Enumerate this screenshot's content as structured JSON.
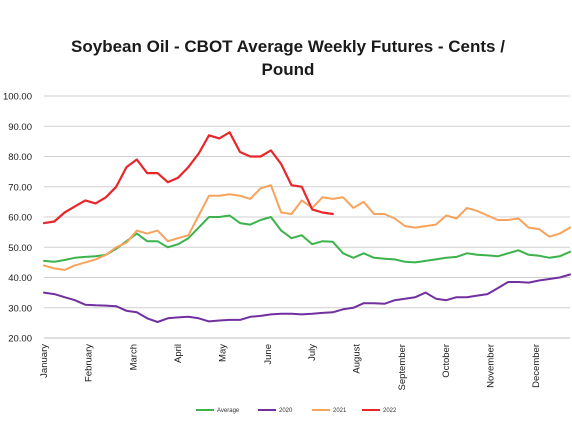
{
  "chart_data": {
    "type": "line",
    "title_lines": [
      "Soybean Oil - CBOT Average Weekly Futures - Cents /",
      "Pound"
    ],
    "xlabel": "",
    "ylabel": "",
    "ylim": [
      20,
      100
    ],
    "yticks": [
      "100.00",
      "90.00",
      "80.00",
      "70.00",
      "60.00",
      "50.00",
      "40.00",
      "30.00",
      "20.00"
    ],
    "xlim": [
      1,
      52
    ],
    "x_tick_labels": [
      {
        "label": "January",
        "week": 1
      },
      {
        "label": "February",
        "week": 5.3
      },
      {
        "label": "March",
        "week": 9.7
      },
      {
        "label": "April",
        "week": 14
      },
      {
        "label": "May",
        "week": 18.3
      },
      {
        "label": "June",
        "week": 22.7
      },
      {
        "label": "July",
        "week": 27
      },
      {
        "label": "August",
        "week": 31.3
      },
      {
        "label": "September",
        "week": 35.7
      },
      {
        "label": "October",
        "week": 40
      },
      {
        "label": "November",
        "week": 44.3
      },
      {
        "label": "December",
        "week": 48.7
      }
    ],
    "grid": true,
    "legend_position": "bottom",
    "series": [
      {
        "name": "Average",
        "color": "#3cb34a",
        "values": [
          45.5,
          45.2,
          45.8,
          46.5,
          46.8,
          47.0,
          47.5,
          49.5,
          52.0,
          54.5,
          52.0,
          52.0,
          50.0,
          51.0,
          53.0,
          56.5,
          60.0,
          60.0,
          60.5,
          58.0,
          57.5,
          59.0,
          60.0,
          55.5,
          53.0,
          54.0,
          51.0,
          52.0,
          51.8,
          48.0,
          46.5,
          48.0,
          46.5,
          46.2,
          46.0,
          45.2,
          45.0,
          45.5,
          46.0,
          46.5,
          46.8,
          48.0,
          47.5,
          47.3,
          47.0,
          48.0,
          49.0,
          47.5,
          47.2,
          46.5,
          47.0,
          48.5
        ]
      },
      {
        "name": "2020",
        "color": "#7030a0",
        "values": [
          35.0,
          34.5,
          33.5,
          32.5,
          31.0,
          30.8,
          30.7,
          30.5,
          29.0,
          28.5,
          26.5,
          25.3,
          26.5,
          26.8,
          27.0,
          26.5,
          25.5,
          25.8,
          26.0,
          26.0,
          27.0,
          27.3,
          27.8,
          28.0,
          28.0,
          27.8,
          28.0,
          28.3,
          28.5,
          29.5,
          30.0,
          31.5,
          31.5,
          31.3,
          32.5,
          33.0,
          33.5,
          35.0,
          33.0,
          32.5,
          33.5,
          33.5,
          34.0,
          34.5,
          36.5,
          38.5,
          38.5,
          38.3,
          39.0,
          39.5,
          40.0,
          41.0
        ]
      },
      {
        "name": "2021",
        "color": "#f7a35c",
        "values": [
          44.0,
          43.0,
          42.5,
          44.0,
          45.0,
          46.0,
          47.5,
          50.0,
          51.5,
          55.5,
          54.5,
          55.5,
          52.0,
          53.0,
          54.0,
          60.5,
          67.0,
          67.0,
          67.5,
          67.0,
          66.0,
          69.5,
          70.5,
          61.5,
          61.0,
          65.5,
          63.0,
          66.5,
          66.0,
          66.5,
          63.0,
          65.0,
          61.0,
          61.0,
          59.5,
          57.0,
          56.5,
          57.0,
          57.5,
          60.5,
          59.5,
          63.0,
          62.0,
          60.5,
          59.0,
          59.0,
          59.5,
          56.5,
          56.0,
          53.5,
          54.5,
          56.5
        ]
      },
      {
        "name": "2022",
        "color": "#e8262a",
        "values": [
          58.0,
          58.5,
          61.5,
          63.5,
          65.5,
          64.5,
          66.5,
          70.0,
          76.5,
          79.0,
          74.5,
          74.5,
          71.5,
          73.0,
          76.5,
          81.0,
          87.0,
          86.0,
          88.0,
          81.5,
          80.0,
          80.0,
          82.0,
          77.5,
          70.5,
          70.0,
          62.5,
          61.5,
          61.0
        ]
      }
    ]
  }
}
